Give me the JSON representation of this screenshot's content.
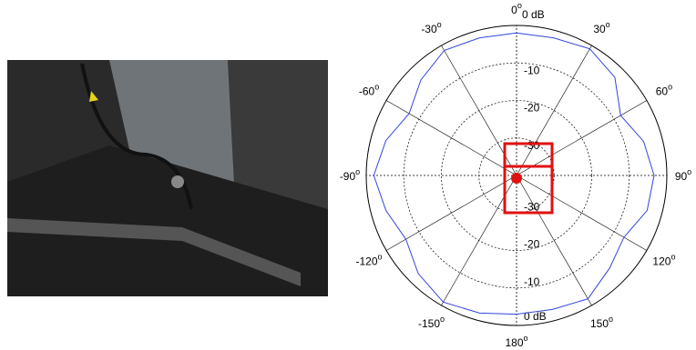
{
  "chart_data": {
    "type": "polar",
    "angle_ticks": [
      0,
      30,
      60,
      90,
      120,
      150,
      180,
      -150,
      -120,
      -90,
      -60,
      -30
    ],
    "degree_mark": "o",
    "rlim": [
      -40,
      0
    ],
    "rticks": [
      -30,
      -20,
      -10,
      {
        "value": 0,
        "label": "0 dB"
      }
    ],
    "series": [
      {
        "color": "#3344dd",
        "x": [
          -180,
          -165,
          -150,
          -135,
          -120,
          -105,
          -90,
          -75,
          -60,
          -45,
          -30,
          -15,
          0,
          15,
          30,
          45,
          60,
          75,
          90,
          105,
          120,
          135,
          150,
          165
        ],
        "values": [
          -3,
          -2,
          -1,
          -3,
          -6,
          -4,
          -2,
          -4,
          -7,
          -4,
          -1.5,
          -2,
          -2,
          -2,
          -1,
          -3,
          -8,
          -5,
          -3.4,
          -4,
          -7,
          -5,
          -2,
          -3
        ]
      }
    ]
  }
}
